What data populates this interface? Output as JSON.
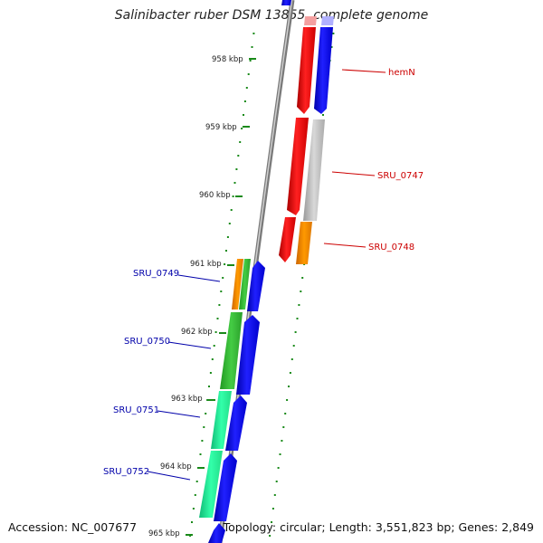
{
  "header": {
    "title": "Salinibacter ruber DSM 13855, complete genome"
  },
  "footer": {
    "accession": "Accession: NC_007677",
    "summary": "Topology: circular; Length: 3,551,823 bp; Genes: 2,849"
  },
  "ticks": [
    "958 kbp",
    "959 kbp",
    "960 kbp",
    "961 kbp",
    "962 kbp",
    "963 kbp",
    "964 kbp",
    "965 kbp"
  ],
  "genes": [
    {
      "label": "hemN",
      "color": "#cc0000",
      "strand": "forward"
    },
    {
      "label": "SRU_0747",
      "color": "#cc0000",
      "strand": "forward"
    },
    {
      "label": "SRU_0748",
      "color": "#cc0000",
      "strand": "forward"
    },
    {
      "label": "SRU_0749",
      "color": "#0000aa",
      "strand": "reverse"
    },
    {
      "label": "SRU_0750",
      "color": "#0000aa",
      "strand": "reverse"
    },
    {
      "label": "SRU_0751",
      "color": "#0000aa",
      "strand": "reverse"
    },
    {
      "label": "SRU_0752",
      "color": "#0000aa",
      "strand": "reverse"
    }
  ],
  "colors": {
    "backbone": "#888888",
    "tick": "#1a8a1a",
    "forward_label": "#cc0000",
    "reverse_label": "#0000aa",
    "red_block": "#ff0000",
    "blue_block": "#0000ff",
    "grey_block": "#bbbbbb",
    "orange_block": "#ff8c00",
    "green_block": "#33bb33",
    "teal_block": "#22ee99"
  }
}
